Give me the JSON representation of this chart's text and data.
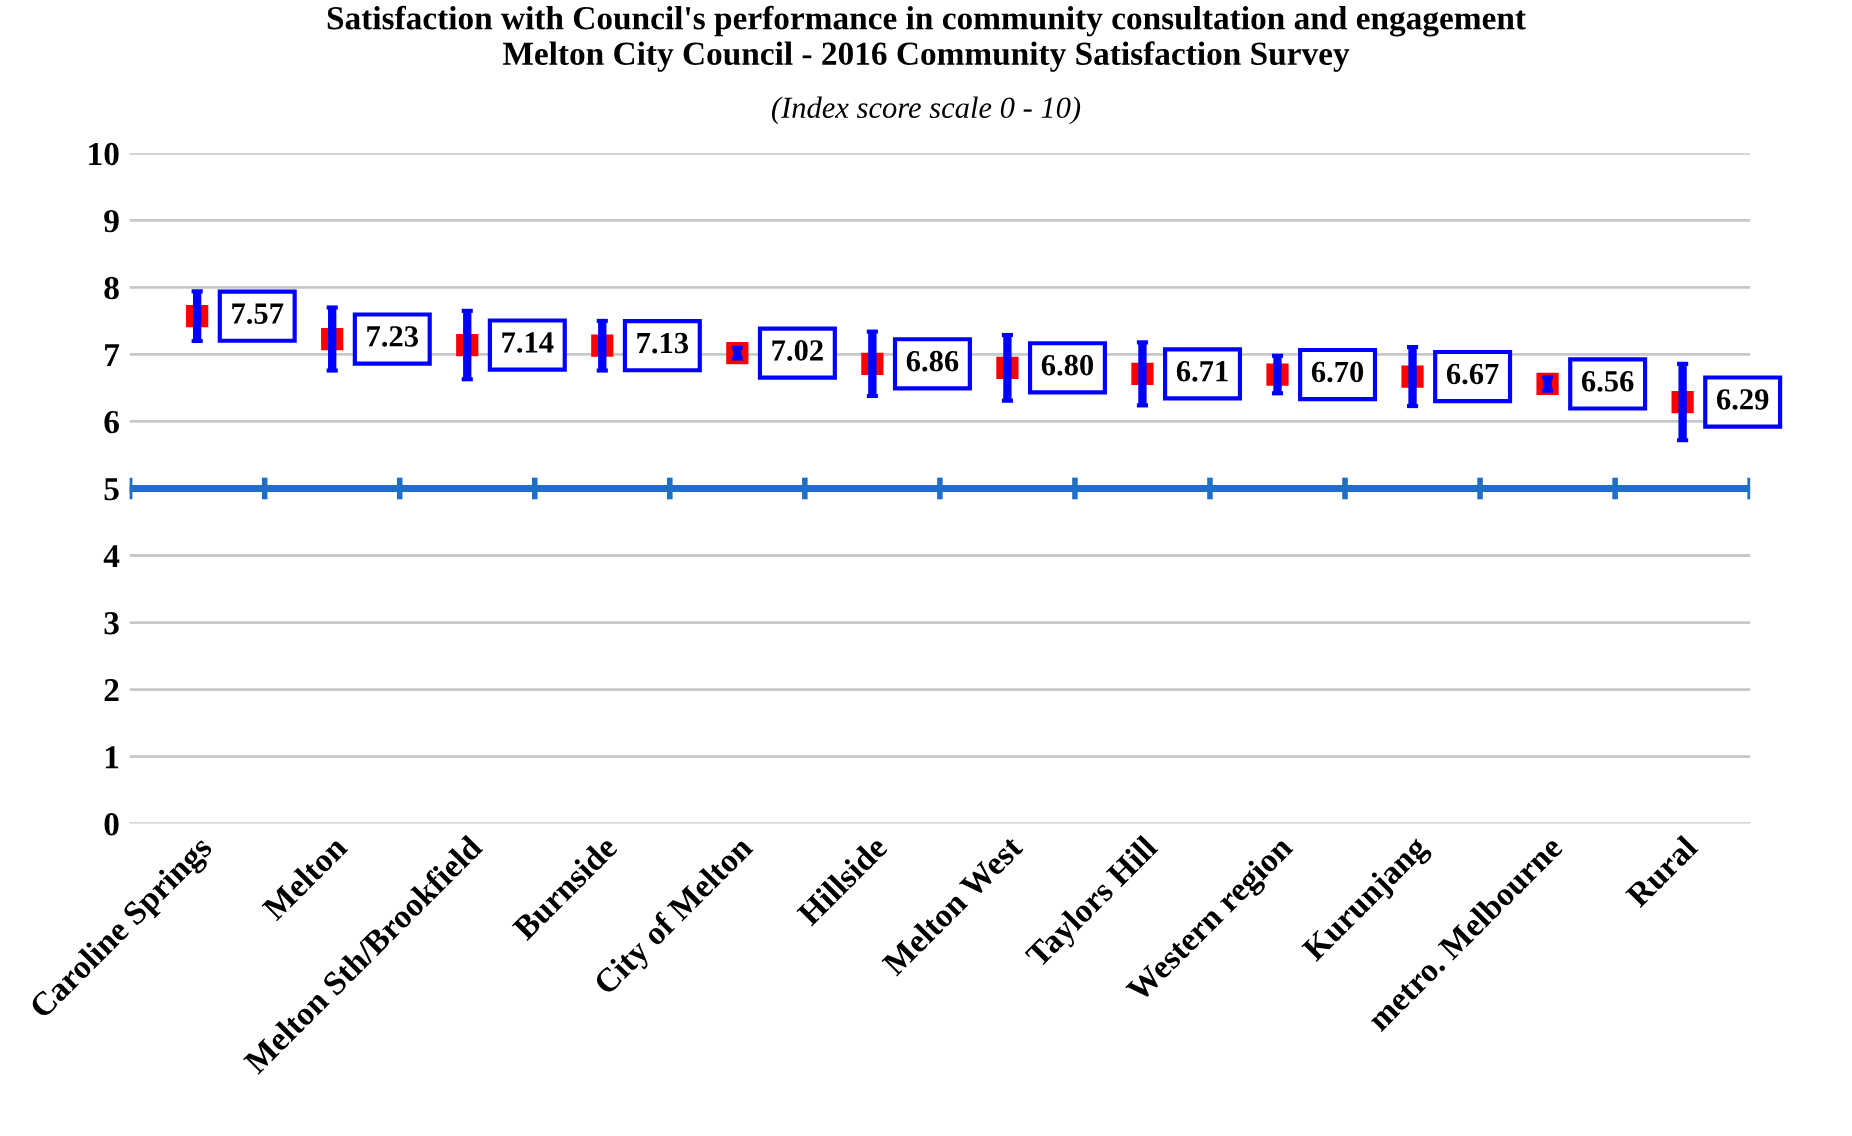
{
  "chart_data": {
    "type": "scatter",
    "title": "Satisfaction with Council's performance in community consultation and engagement\nMelton City Council - 2016 Community Satisfaction Survey",
    "subtitle": "(Index score scale 0 - 10)",
    "categories": [
      "Caroline Springs",
      "Melton",
      "Melton Sth/Brookfield",
      "Burnside",
      "City of Melton",
      "Hillside",
      "Melton West",
      "Taylors Hill",
      "Western region",
      "Kurunjang",
      "metro. Melbourne",
      "Rural"
    ],
    "series": [
      {
        "color": "#ff0000",
        "values": [
          7.57,
          7.23,
          7.14,
          7.13,
          7.02,
          6.86,
          6.8,
          6.71,
          6.7,
          6.67,
          6.56,
          6.29
        ],
        "errors": [
          0.37,
          0.47,
          0.51,
          0.37,
          0.08,
          0.48,
          0.49,
          0.47,
          0.28,
          0.44,
          0.1,
          0.57
        ]
      }
    ],
    "value_labels": [
      "7.57",
      "7.23",
      "7.14",
      "7.13",
      "7.02",
      "6.86",
      "6.80",
      "6.71",
      "6.70",
      "6.67",
      "6.56",
      "6.29"
    ],
    "marker": "square",
    "ylim": [
      0,
      10
    ],
    "yticks": [
      0,
      1,
      2,
      3,
      4,
      5,
      6,
      7,
      8,
      9,
      10
    ],
    "grid": "y",
    "legend": false,
    "ref_lines": [
      {
        "axis": "y",
        "value": 5,
        "color": "#1f6fc8"
      }
    ]
  }
}
